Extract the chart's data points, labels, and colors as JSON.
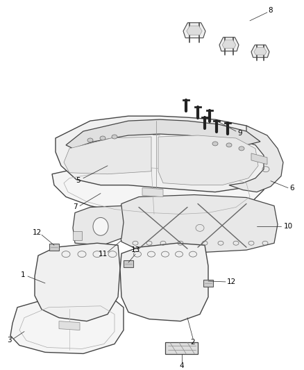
{
  "bg_color": "#ffffff",
  "line_color": "#444444",
  "fill_light": "#f2f2f2",
  "fill_mid": "#e0e0e0",
  "fill_dark": "#cccccc",
  "label_color": "#000000",
  "figsize": [
    4.38,
    5.33
  ],
  "dpi": 100
}
